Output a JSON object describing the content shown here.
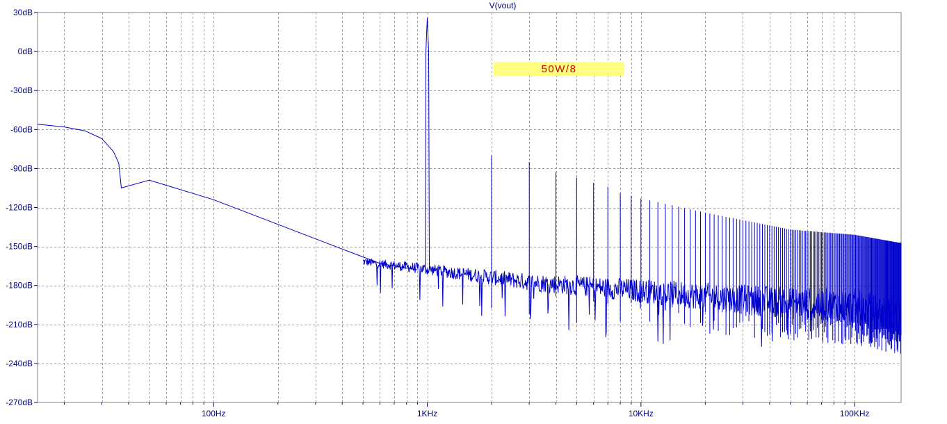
{
  "chart_data": {
    "type": "line",
    "title": "V(vout)",
    "xlabel": "",
    "ylabel": "",
    "x_scale": "log",
    "xlim": [
      "15Hz",
      "165KHz"
    ],
    "ylim": [
      -270,
      30
    ],
    "y_unit": "dB",
    "x_ticks": [
      {
        "label": "100Hz",
        "value": 100
      },
      {
        "label": "1KHz",
        "value": 1000
      },
      {
        "label": "10KHz",
        "value": 10000
      },
      {
        "label": "100KHz",
        "value": 100000
      }
    ],
    "y_ticks": [
      {
        "label": "30dB",
        "value": 30
      },
      {
        "label": "0dB",
        "value": 0
      },
      {
        "label": "-30dB",
        "value": -30
      },
      {
        "label": "-60dB",
        "value": -60
      },
      {
        "label": "-90dB",
        "value": -90
      },
      {
        "label": "-120dB",
        "value": -120
      },
      {
        "label": "-150dB",
        "value": -150
      },
      {
        "label": "-180dB",
        "value": -180
      },
      {
        "label": "-210dB",
        "value": -210
      },
      {
        "label": "-240dB",
        "value": -240
      },
      {
        "label": "-270dB",
        "value": -270
      }
    ],
    "grid": true,
    "annotation": "50W/8",
    "series": [
      {
        "name": "",
        "color": "#0000cc",
        "low_freq_curve": [
          {
            "x": 15,
            "y": -56
          },
          {
            "x": 20,
            "y": -58
          },
          {
            "x": 25,
            "y": -61
          },
          {
            "x": 30,
            "y": -67
          },
          {
            "x": 34,
            "y": -77
          },
          {
            "x": 36,
            "y": -86
          },
          {
            "x": 37,
            "y": -105
          },
          {
            "x": 50,
            "y": -99
          },
          {
            "x": 100,
            "y": -114
          },
          {
            "x": 200,
            "y": -133
          },
          {
            "x": 400,
            "y": -152
          },
          {
            "x": 600,
            "y": -163
          },
          {
            "x": 900,
            "y": -168
          }
        ],
        "fundamental": {
          "x": 1000,
          "y": 26
        },
        "harmonic_peaks": [
          {
            "x": 2000,
            "y": -80
          },
          {
            "x": 3000,
            "y": -85
          },
          {
            "x": 4000,
            "y": -93
          },
          {
            "x": 5000,
            "y": -97
          },
          {
            "x": 6000,
            "y": -101
          },
          {
            "x": 7000,
            "y": -104
          },
          {
            "x": 8000,
            "y": -109
          },
          {
            "x": 9000,
            "y": -111
          },
          {
            "x": 10000,
            "y": -113
          },
          {
            "x": 20000,
            "y": -124
          },
          {
            "x": 50000,
            "y": -137
          },
          {
            "x": 100000,
            "y": -141
          },
          {
            "x": 160000,
            "y": -147
          }
        ],
        "noise_floor": [
          {
            "x": 500,
            "y": -162
          },
          {
            "x": 1000,
            "y": -168
          },
          {
            "x": 3000,
            "y": -178
          },
          {
            "x": 10000,
            "y": -185
          },
          {
            "x": 30000,
            "y": -192
          },
          {
            "x": 100000,
            "y": -198
          },
          {
            "x": 160000,
            "y": -205
          }
        ]
      }
    ]
  }
}
